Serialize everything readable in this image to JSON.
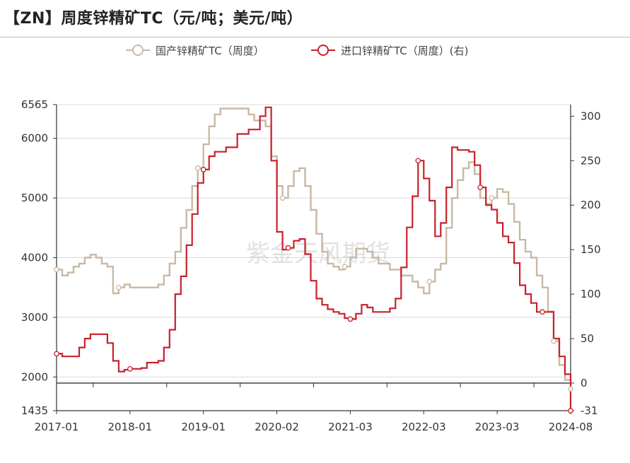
{
  "title": "【ZN】周度锌精矿TC（元/吨；美元/吨）",
  "watermark": "紫金天风期货",
  "colors": {
    "domestic": "#c8b9a4",
    "imported": "#c8202c",
    "grid": "#d9d9d9",
    "axis": "#333333"
  },
  "chart_data": {
    "type": "line",
    "legend_position": "top-center",
    "grid": true,
    "x_tick_labels": [
      "2017-01",
      "2018-01",
      "2019-01",
      "2020-02",
      "2021-03",
      "2022-03",
      "2023-03",
      "2024-08"
    ],
    "x_range": [
      "2017-01",
      "2024-08"
    ],
    "y_left": {
      "range": [
        1435,
        6565
      ],
      "ticks": [
        1435,
        2000,
        3000,
        4000,
        5000,
        6000,
        6565
      ]
    },
    "y_right": {
      "range": [
        -31,
        313
      ],
      "ticks": [
        -31,
        0,
        50,
        100,
        150,
        200,
        250,
        300
      ]
    },
    "series": [
      {
        "name": "国产锌精矿TC（周度）",
        "axis": "left",
        "points": [
          [
            "2017-01",
            3800
          ],
          [
            "2017-02",
            3700
          ],
          [
            "2017-03",
            3750
          ],
          [
            "2017-04",
            3850
          ],
          [
            "2017-05",
            3900
          ],
          [
            "2017-06",
            4000
          ],
          [
            "2017-07",
            4050
          ],
          [
            "2017-08",
            4000
          ],
          [
            "2017-09",
            3900
          ],
          [
            "2017-10",
            3850
          ],
          [
            "2017-11",
            3400
          ],
          [
            "2017-12",
            3500
          ],
          [
            "2018-01",
            3550
          ],
          [
            "2018-02",
            3500
          ],
          [
            "2018-05",
            3500
          ],
          [
            "2018-07",
            3550
          ],
          [
            "2018-08",
            3700
          ],
          [
            "2018-09",
            3900
          ],
          [
            "2018-10",
            4100
          ],
          [
            "2018-11",
            4500
          ],
          [
            "2018-12",
            4800
          ],
          [
            "2019-01",
            5200
          ],
          [
            "2019-02",
            5500
          ],
          [
            "2019-03",
            5900
          ],
          [
            "2019-04",
            6200
          ],
          [
            "2019-05",
            6400
          ],
          [
            "2019-06",
            6500
          ],
          [
            "2019-09",
            6500
          ],
          [
            "2019-11",
            6400
          ],
          [
            "2019-12",
            6300
          ],
          [
            "2020-02",
            6200
          ],
          [
            "2020-03",
            5700
          ],
          [
            "2020-04",
            5200
          ],
          [
            "2020-05",
            5000
          ],
          [
            "2020-06",
            5200
          ],
          [
            "2020-07",
            5450
          ],
          [
            "2020-08",
            5500
          ],
          [
            "2020-09",
            5200
          ],
          [
            "2020-10",
            4800
          ],
          [
            "2020-11",
            4400
          ],
          [
            "2020-12",
            4100
          ],
          [
            "2021-01",
            3900
          ],
          [
            "2021-02",
            3850
          ],
          [
            "2021-03",
            3800
          ],
          [
            "2021-04",
            3850
          ],
          [
            "2021-05",
            4000
          ],
          [
            "2021-06",
            4150
          ],
          [
            "2021-08",
            4100
          ],
          [
            "2021-09",
            4000
          ],
          [
            "2021-10",
            3900
          ],
          [
            "2021-12",
            3800
          ],
          [
            "2022-02",
            3700
          ],
          [
            "2022-04",
            3600
          ],
          [
            "2022-05",
            3500
          ],
          [
            "2022-06",
            3400
          ],
          [
            "2022-07",
            3600
          ],
          [
            "2022-08",
            3800
          ],
          [
            "2022-09",
            3900
          ],
          [
            "2022-10",
            4500
          ],
          [
            "2022-11",
            5000
          ],
          [
            "2022-12",
            5300
          ],
          [
            "2023-01",
            5500
          ],
          [
            "2023-02",
            5600
          ],
          [
            "2023-03",
            5400
          ],
          [
            "2023-04",
            5000
          ],
          [
            "2023-05",
            4900
          ],
          [
            "2023-06",
            5000
          ],
          [
            "2023-07",
            5150
          ],
          [
            "2023-08",
            5100
          ],
          [
            "2023-09",
            4900
          ],
          [
            "2023-10",
            4600
          ],
          [
            "2023-11",
            4300
          ],
          [
            "2023-12",
            4100
          ],
          [
            "2024-01",
            4000
          ],
          [
            "2024-02",
            3700
          ],
          [
            "2024-03",
            3500
          ],
          [
            "2024-04",
            3100
          ],
          [
            "2024-05",
            2600
          ],
          [
            "2024-06",
            2200
          ],
          [
            "2024-07",
            1950
          ],
          [
            "2024-08",
            1800
          ]
        ]
      },
      {
        "name": "进口锌精矿TC（周度）(右)",
        "axis": "right",
        "points": [
          [
            "2017-01",
            33
          ],
          [
            "2017-02",
            30
          ],
          [
            "2017-04",
            30
          ],
          [
            "2017-05",
            40
          ],
          [
            "2017-06",
            50
          ],
          [
            "2017-07",
            55
          ],
          [
            "2017-09",
            55
          ],
          [
            "2017-10",
            45
          ],
          [
            "2017-11",
            25
          ],
          [
            "2017-12",
            13
          ],
          [
            "2018-01",
            15
          ],
          [
            "2018-02",
            16
          ],
          [
            "2018-04",
            17
          ],
          [
            "2018-05",
            23
          ],
          [
            "2018-07",
            25
          ],
          [
            "2018-08",
            40
          ],
          [
            "2018-09",
            60
          ],
          [
            "2018-10",
            100
          ],
          [
            "2018-11",
            120
          ],
          [
            "2018-12",
            155
          ],
          [
            "2019-01",
            190
          ],
          [
            "2019-02",
            225
          ],
          [
            "2019-03",
            240
          ],
          [
            "2019-04",
            255
          ],
          [
            "2019-05",
            260
          ],
          [
            "2019-07",
            265
          ],
          [
            "2019-09",
            280
          ],
          [
            "2019-11",
            285
          ],
          [
            "2020-01",
            300
          ],
          [
            "2020-02",
            310
          ],
          [
            "2020-03",
            250
          ],
          [
            "2020-04",
            170
          ],
          [
            "2020-05",
            150
          ],
          [
            "2020-06",
            152
          ],
          [
            "2020-07",
            160
          ],
          [
            "2020-08",
            162
          ],
          [
            "2020-09",
            145
          ],
          [
            "2020-10",
            115
          ],
          [
            "2020-11",
            95
          ],
          [
            "2020-12",
            88
          ],
          [
            "2021-01",
            83
          ],
          [
            "2021-02",
            80
          ],
          [
            "2021-03",
            78
          ],
          [
            "2021-04",
            73
          ],
          [
            "2021-05",
            72
          ],
          [
            "2021-06",
            78
          ],
          [
            "2021-07",
            88
          ],
          [
            "2021-08",
            85
          ],
          [
            "2021-09",
            80
          ],
          [
            "2021-10",
            80
          ],
          [
            "2021-12",
            84
          ],
          [
            "2022-01",
            95
          ],
          [
            "2022-02",
            130
          ],
          [
            "2022-03",
            175
          ],
          [
            "2022-04",
            210
          ],
          [
            "2022-05",
            250
          ],
          [
            "2022-06",
            230
          ],
          [
            "2022-07",
            205
          ],
          [
            "2022-08",
            165
          ],
          [
            "2022-09",
            180
          ],
          [
            "2022-10",
            220
          ],
          [
            "2022-11",
            265
          ],
          [
            "2022-12",
            262
          ],
          [
            "2023-01",
            262
          ],
          [
            "2023-02",
            260
          ],
          [
            "2023-03",
            245
          ],
          [
            "2023-04",
            220
          ],
          [
            "2023-05",
            200
          ],
          [
            "2023-06",
            195
          ],
          [
            "2023-07",
            180
          ],
          [
            "2023-08",
            165
          ],
          [
            "2023-09",
            158
          ],
          [
            "2023-10",
            135
          ],
          [
            "2023-11",
            110
          ],
          [
            "2023-12",
            100
          ],
          [
            "2024-01",
            90
          ],
          [
            "2024-02",
            80
          ],
          [
            "2024-03",
            80
          ],
          [
            "2024-04",
            80
          ],
          [
            "2024-05",
            50
          ],
          [
            "2024-06",
            30
          ],
          [
            "2024-07",
            10
          ],
          [
            "2024-08",
            -31
          ]
        ]
      }
    ]
  }
}
